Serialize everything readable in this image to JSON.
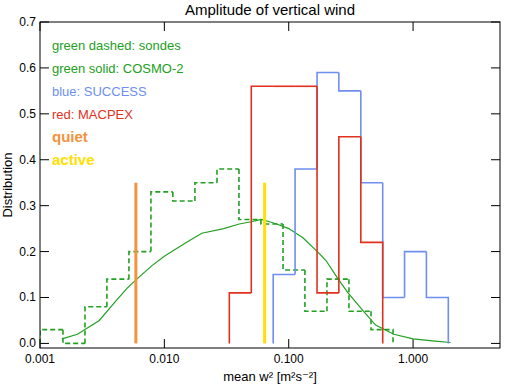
{
  "chart_data": {
    "type": "histogram",
    "title": "Amplitude of vertical wind",
    "x_label": "mean w² [m²s⁻²]",
    "y_label": "Distribution",
    "log": "x",
    "xlim": [
      0.001,
      5
    ],
    "ylim": [
      -0.01,
      0.7
    ],
    "xticks": [
      {
        "value": 0.001,
        "label": "0.001"
      },
      {
        "value": 0.01,
        "label": "0.010"
      },
      {
        "value": 0.1,
        "label": "0.100"
      },
      {
        "value": 1,
        "label": "1.000"
      }
    ],
    "yticks": [
      {
        "value": 0,
        "label": "0.0"
      },
      0.1,
      0.2,
      0.3,
      0.4,
      0.5,
      0.6,
      0.7
    ],
    "legend": "top-left",
    "series": [
      {
        "name": "green dashed: sondes",
        "type": "histogram",
        "color": "#22a022",
        "line_style": "dashed",
        "bins": [
          0.001,
          0.00153,
          0.0023,
          0.00345,
          0.00519,
          0.0078,
          0.0117,
          0.0176,
          0.0265,
          0.0398,
          0.0598,
          0.09,
          0.135,
          0.203,
          0.305,
          0.459,
          0.69
        ],
        "values": [
          0.03,
          0,
          0.08,
          0.14,
          0.2,
          0.33,
          0.31,
          0.35,
          0.38,
          0.27,
          0.26,
          0.16,
          0.07,
          0.14,
          0.07,
          0.03
        ]
      },
      {
        "name": "green solid: COSMO-2",
        "type": "line",
        "color": "#22a022",
        "line_style": "solid",
        "x": [
          0.0015,
          0.002,
          0.003,
          0.004,
          0.005,
          0.006,
          0.008,
          0.01,
          0.015,
          0.02,
          0.03,
          0.04,
          0.05,
          0.06,
          0.07,
          0.08,
          0.1,
          0.13,
          0.17,
          0.2,
          0.25,
          0.3,
          0.4,
          0.5,
          0.7,
          1.0,
          1.5,
          2.0
        ],
        "values": [
          0.01,
          0.02,
          0.05,
          0.09,
          0.12,
          0.14,
          0.17,
          0.19,
          0.22,
          0.24,
          0.25,
          0.26,
          0.265,
          0.27,
          0.265,
          0.26,
          0.25,
          0.23,
          0.2,
          0.18,
          0.14,
          0.11,
          0.07,
          0.04,
          0.02,
          0.01,
          0.005,
          0.002
        ]
      },
      {
        "name": "blue: SUCCESS",
        "type": "histogram",
        "color": "#6f8ff0",
        "line_style": "solid",
        "bins": [
          0.075,
          0.1125,
          0.169,
          0.253,
          0.38,
          0.57,
          0.854,
          1.28,
          1.92
        ],
        "values": [
          0.15,
          0.38,
          0.59,
          0.55,
          0.35,
          0.1,
          0.2,
          0.1
        ]
      },
      {
        "name": "red: MACPEX",
        "type": "histogram",
        "color": "#e2301c",
        "line_style": "solid",
        "bins": [
          0.0333,
          0.05,
          0.075,
          0.1125,
          0.169,
          0.253,
          0.38,
          0.57
        ],
        "values": [
          0.11,
          0.56,
          0.56,
          0.56,
          0.11,
          0.45,
          0.22
        ]
      },
      {
        "name": "quiet",
        "type": "line",
        "color": "#f5923e",
        "line_style": "solid",
        "x": [
          0.0059,
          0.0059
        ],
        "values": [
          0,
          0.35
        ]
      },
      {
        "name": "active",
        "type": "line",
        "color": "#ffe000",
        "line_style": "solid",
        "x": [
          0.064,
          0.064
        ],
        "values": [
          0,
          0.35
        ]
      }
    ]
  }
}
